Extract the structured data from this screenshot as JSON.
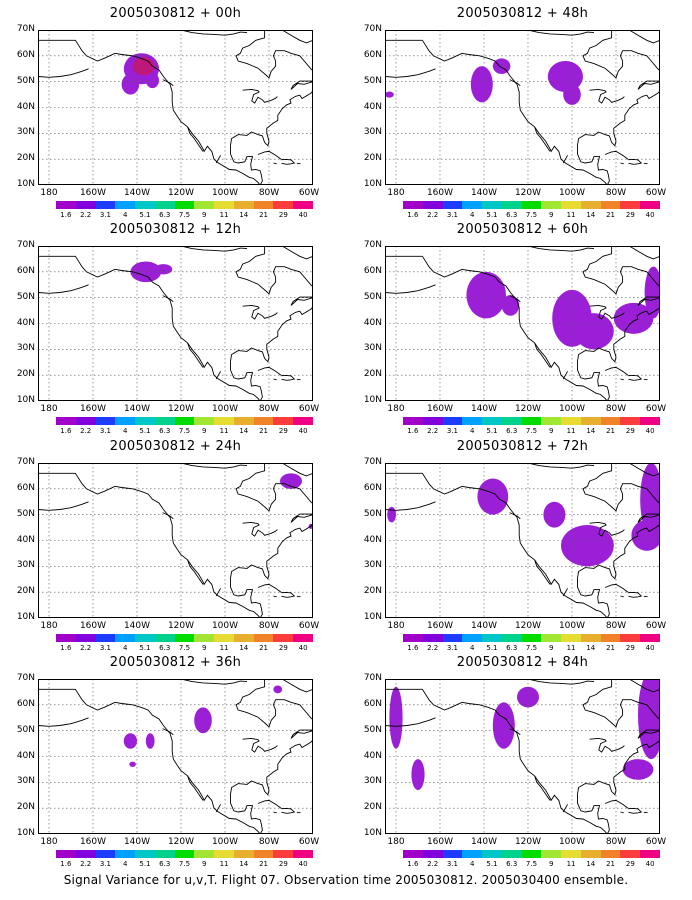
{
  "panels": [
    {
      "title": "2005030812 + 00h"
    },
    {
      "title": "2005030812 + 48h"
    },
    {
      "title": "2005030812 + 12h"
    },
    {
      "title": "2005030812 + 60h"
    },
    {
      "title": "2005030812 + 24h"
    },
    {
      "title": "2005030812 + 72h"
    },
    {
      "title": "2005030812 + 36h"
    },
    {
      "title": "2005030812 + 84h"
    }
  ],
  "axes": {
    "lat_labels": [
      "70N",
      "60N",
      "50N",
      "40N",
      "30N",
      "20N",
      "10N"
    ],
    "lon_labels": [
      "180",
      "160W",
      "140W",
      "120W",
      "100W",
      "80W",
      "60W"
    ],
    "lat_range": [
      10,
      70
    ],
    "lon_range": [
      -185,
      -60
    ]
  },
  "colorbar": {
    "labels": [
      "1.6",
      "2.2",
      "3.1",
      "4",
      "5.1",
      "6.3",
      "7.5",
      "9",
      "11",
      "14",
      "21",
      "29",
      "40"
    ],
    "colors": [
      "#a000c8",
      "#8200dc",
      "#1e3cff",
      "#00a0ff",
      "#00c8c8",
      "#00d28c",
      "#00dc00",
      "#a0e632",
      "#e6dc32",
      "#e6af2d",
      "#f08228",
      "#fa3c3c",
      "#f00082"
    ]
  },
  "footer": "Signal Variance for u,v,T. Flight 07. Observation time 2005030812. 2005030400 ensemble.",
  "blob_color": "#9b1fd6",
  "blob_dark": "#6f2be0"
}
